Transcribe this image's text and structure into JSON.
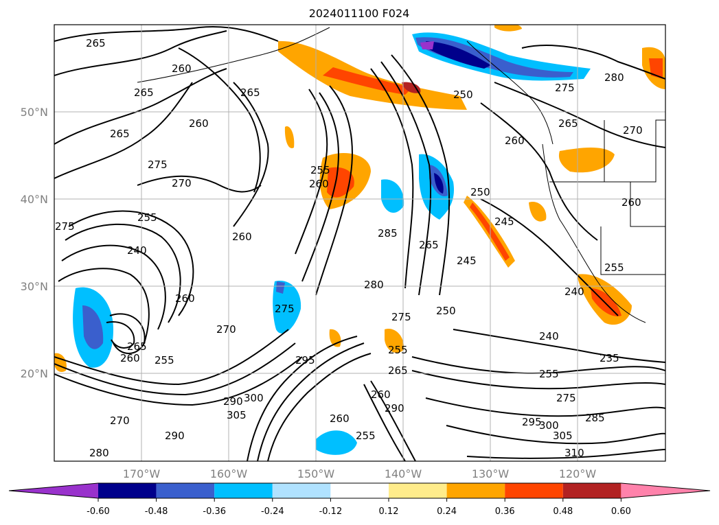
{
  "title": "2024011100 F024",
  "map": {
    "lon_ticks": [
      "170°W",
      "160°W",
      "150°W",
      "140°W",
      "130°W",
      "120°W"
    ],
    "lat_ticks": [
      "50°N",
      "40°N",
      "30°N",
      "20°N"
    ],
    "contour_labels": [
      "265",
      "260",
      "265",
      "260",
      "265",
      "275",
      "270",
      "275",
      "255",
      "240",
      "260",
      "265",
      "270",
      "275",
      "255",
      "260",
      "260",
      "285",
      "280",
      "275",
      "250",
      "265",
      "245",
      "245",
      "250",
      "240",
      "240",
      "235",
      "255",
      "275",
      "285",
      "295",
      "300",
      "305",
      "310",
      "255",
      "260",
      "290",
      "260",
      "255",
      "265",
      "290",
      "300",
      "305",
      "295",
      "270",
      "290",
      "280",
      "265",
      "260",
      "255",
      "280",
      "275",
      "265",
      "270",
      "260",
      "250",
      "255",
      "260"
    ]
  },
  "colorbar": {
    "tick_labels": [
      "-0.60",
      "-0.48",
      "-0.36",
      "-0.24",
      "-0.12",
      "0.12",
      "0.24",
      "0.36",
      "0.48",
      "0.60"
    ],
    "colors": [
      "#9932cc",
      "#00008b",
      "#3a5fcd",
      "#00bfff",
      "#b0e2ff",
      "#ffffff",
      "#ffec8b",
      "#ffa500",
      "#ff4500",
      "#b22222",
      "#ff82ab"
    ]
  }
}
